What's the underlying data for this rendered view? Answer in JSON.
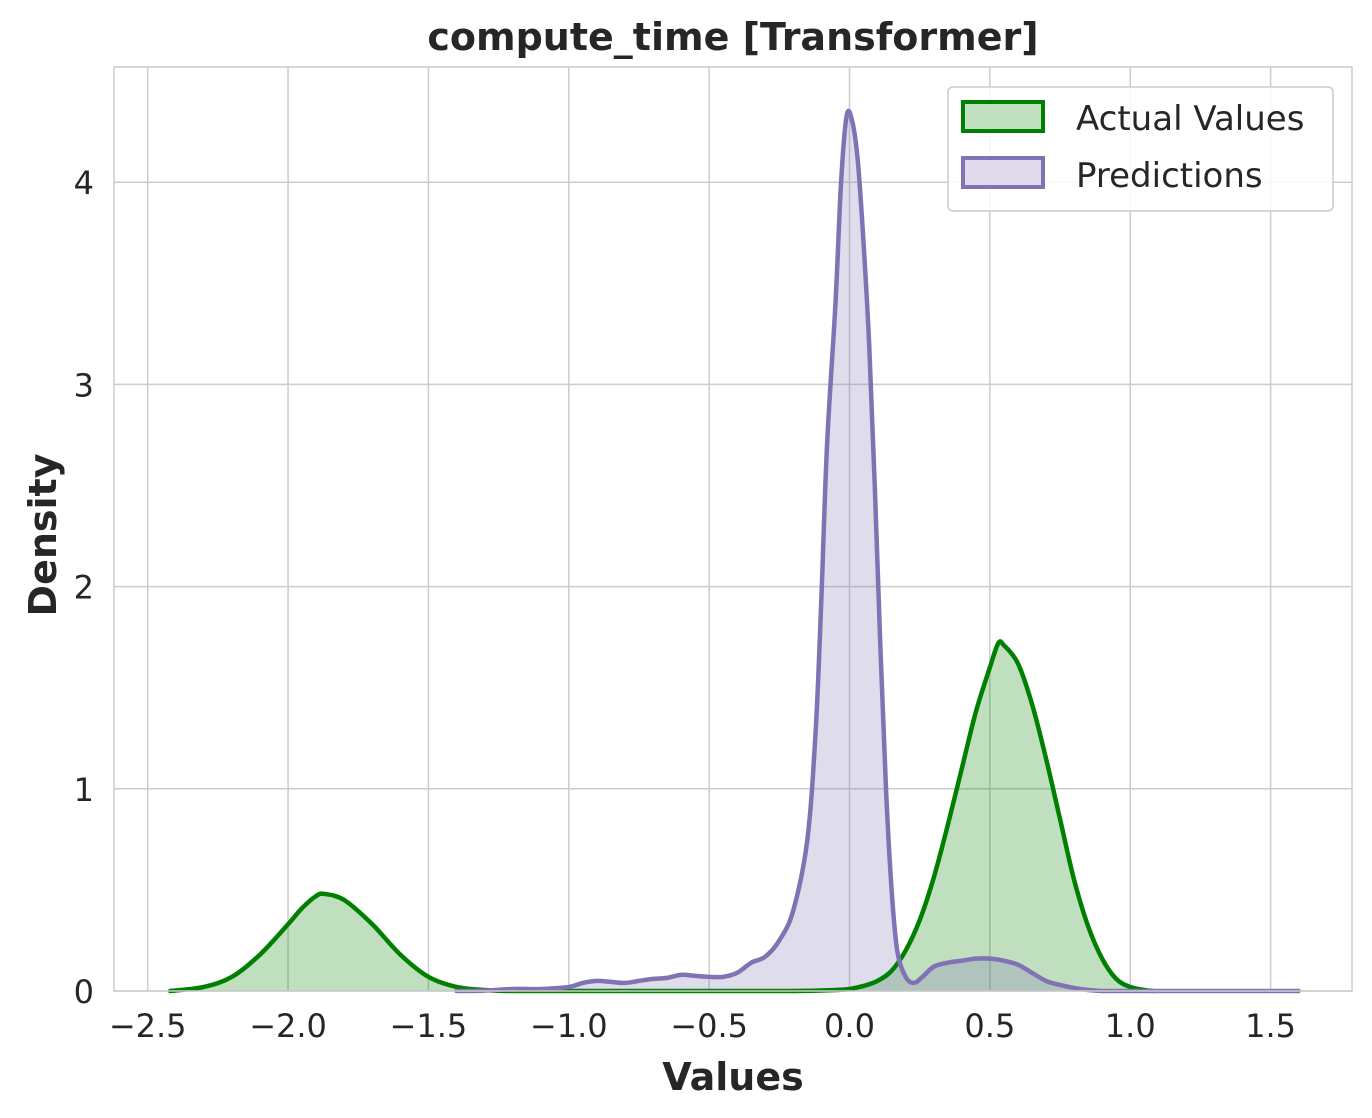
{
  "chart_data": {
    "type": "area",
    "title": "compute_time [Transformer]",
    "xlabel": "Values",
    "ylabel": "Density",
    "xlim": [
      -2.62,
      1.79
    ],
    "ylim": [
      0,
      4.57
    ],
    "xticks": [
      -2.5,
      -2.0,
      -1.5,
      -1.0,
      -0.5,
      0.0,
      0.5,
      1.0,
      1.5
    ],
    "xtick_labels": [
      "−2.5",
      "−2.0",
      "−1.5",
      "−1.0",
      "−0.5",
      "0.0",
      "0.5",
      "1.0",
      "1.5"
    ],
    "yticks": [
      0,
      1,
      2,
      3,
      4
    ],
    "ytick_labels": [
      "0",
      "1",
      "2",
      "3",
      "4"
    ],
    "grid": true,
    "legend": {
      "position": "top-right",
      "entries": [
        "Actual Values",
        "Predictions"
      ]
    },
    "series": [
      {
        "name": "Actual Values",
        "color": "#008000",
        "fill": "#c0e0c0",
        "x": [
          -2.42,
          -2.3,
          -2.2,
          -2.1,
          -2.0,
          -1.95,
          -1.9,
          -1.87,
          -1.8,
          -1.7,
          -1.6,
          -1.5,
          -1.4,
          -1.3,
          -1.2,
          -1.0,
          -0.8,
          -0.5,
          -0.2,
          -0.05,
          0.0,
          0.05,
          0.1,
          0.15,
          0.2,
          0.25,
          0.3,
          0.35,
          0.4,
          0.45,
          0.5,
          0.53,
          0.55,
          0.6,
          0.65,
          0.7,
          0.75,
          0.8,
          0.85,
          0.9,
          0.95,
          1.0,
          1.05,
          1.08
        ],
        "y": [
          0.0,
          0.02,
          0.07,
          0.18,
          0.33,
          0.41,
          0.47,
          0.48,
          0.45,
          0.33,
          0.18,
          0.07,
          0.02,
          0.005,
          0.0,
          0.0,
          0.0,
          0.0,
          0.0,
          0.005,
          0.01,
          0.025,
          0.05,
          0.1,
          0.2,
          0.35,
          0.56,
          0.82,
          1.1,
          1.38,
          1.6,
          1.72,
          1.71,
          1.62,
          1.42,
          1.15,
          0.85,
          0.55,
          0.32,
          0.16,
          0.06,
          0.02,
          0.005,
          0.0
        ]
      },
      {
        "name": "Predictions",
        "color": "#8172b3",
        "fill": "#dfdbec",
        "x": [
          -1.4,
          -1.3,
          -1.2,
          -1.1,
          -1.0,
          -0.95,
          -0.9,
          -0.85,
          -0.8,
          -0.75,
          -0.7,
          -0.65,
          -0.6,
          -0.55,
          -0.5,
          -0.45,
          -0.4,
          -0.35,
          -0.3,
          -0.25,
          -0.2,
          -0.15,
          -0.12,
          -0.1,
          -0.08,
          -0.05,
          -0.03,
          -0.01,
          0.01,
          0.03,
          0.05,
          0.07,
          0.09,
          0.11,
          0.13,
          0.15,
          0.17,
          0.2,
          0.23,
          0.26,
          0.3,
          0.35,
          0.4,
          0.45,
          0.5,
          0.55,
          0.6,
          0.65,
          0.7,
          0.75,
          0.8,
          0.85,
          0.9,
          1.0,
          1.2,
          1.4,
          1.6
        ],
        "y": [
          0.0,
          0.002,
          0.01,
          0.01,
          0.02,
          0.04,
          0.05,
          0.045,
          0.04,
          0.05,
          0.06,
          0.065,
          0.08,
          0.075,
          0.07,
          0.07,
          0.09,
          0.14,
          0.17,
          0.25,
          0.4,
          0.75,
          1.3,
          1.95,
          2.7,
          3.4,
          4.0,
          4.33,
          4.3,
          4.1,
          3.7,
          3.2,
          2.5,
          1.7,
          1.0,
          0.5,
          0.2,
          0.07,
          0.04,
          0.07,
          0.12,
          0.14,
          0.15,
          0.16,
          0.16,
          0.15,
          0.13,
          0.09,
          0.05,
          0.03,
          0.015,
          0.005,
          0.0,
          0.0,
          0.0,
          0.0,
          0.0
        ]
      }
    ]
  }
}
